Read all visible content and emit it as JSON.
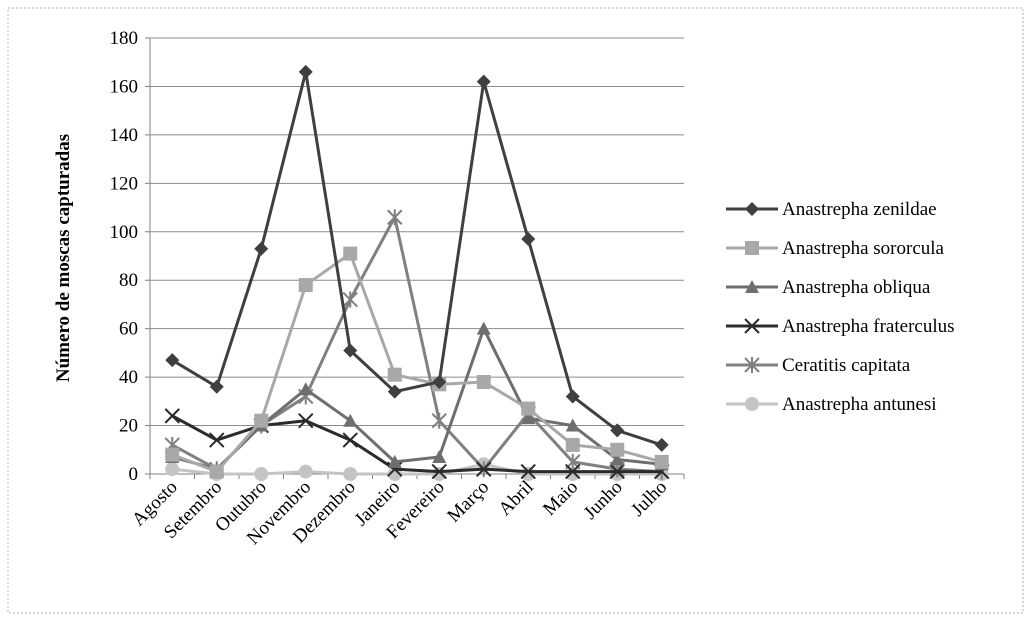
{
  "chart_data": {
    "type": "line",
    "title": "",
    "xlabel": "",
    "ylabel": "Número de moscas capturadas",
    "ylim": [
      0,
      180
    ],
    "yticks": [
      0,
      20,
      40,
      60,
      80,
      100,
      120,
      140,
      160,
      180
    ],
    "grid": true,
    "legend_position": "right",
    "categories": [
      "Agosto",
      "Setembro",
      "Outubro",
      "Novembro",
      "Dezembro",
      "Janeiro",
      "Fevereiro",
      "Março",
      "Abril",
      "Maio",
      "Junho",
      "Julho"
    ],
    "series": [
      {
        "name": "Anastrepha zenildae",
        "marker": "diamond",
        "color": "#3f3f3f",
        "values": [
          47,
          36,
          93,
          166,
          51,
          34,
          38,
          162,
          97,
          32,
          18,
          12
        ]
      },
      {
        "name": "Anastrepha sororcula",
        "marker": "square",
        "color": "#a8a8a8",
        "values": [
          8,
          1,
          22,
          78,
          91,
          41,
          37,
          38,
          27,
          12,
          10,
          5
        ]
      },
      {
        "name": "Anastrepha obliqua",
        "marker": "triangle",
        "color": "#6e6e6e",
        "values": [
          7,
          2,
          20,
          35,
          22,
          5,
          7,
          60,
          23,
          20,
          6,
          4
        ]
      },
      {
        "name": "Anastrepha fraterculus",
        "marker": "x",
        "color": "#2b2b2b",
        "values": [
          24,
          14,
          20,
          22,
          14,
          2,
          1,
          2,
          1,
          1,
          1,
          1
        ]
      },
      {
        "name": "Ceratitis capitata",
        "marker": "star",
        "color": "#808080",
        "values": [
          12,
          2,
          20,
          32,
          72,
          106,
          22,
          2,
          25,
          5,
          2,
          1
        ]
      },
      {
        "name": "Anastrepha antunesi",
        "marker": "circle",
        "color": "#c4c4c4",
        "values": [
          2,
          0,
          0,
          1,
          0,
          0,
          0,
          4,
          0,
          0,
          0,
          0
        ]
      }
    ]
  }
}
